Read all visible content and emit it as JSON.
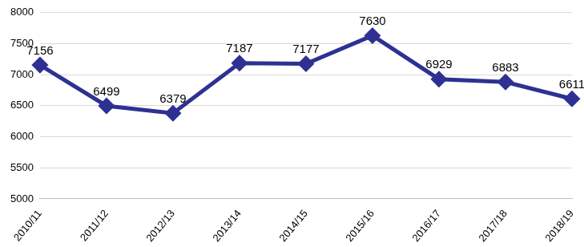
{
  "chart_data": {
    "type": "line",
    "categories": [
      "2010/11",
      "2011/12",
      "2012/13",
      "2013/14",
      "2014/15",
      "2015/16",
      "2016/17",
      "2017/18",
      "2018/19"
    ],
    "values": [
      7156,
      6499,
      6379,
      7187,
      7177,
      7630,
      6929,
      6883,
      6611
    ],
    "color": "#2e3192",
    "marker": "diamond",
    "data_labels": true,
    "grid": true,
    "ylim": [
      5000,
      8000
    ],
    "yticks": [
      5000,
      5500,
      6000,
      6500,
      7000,
      7500,
      8000
    ]
  }
}
